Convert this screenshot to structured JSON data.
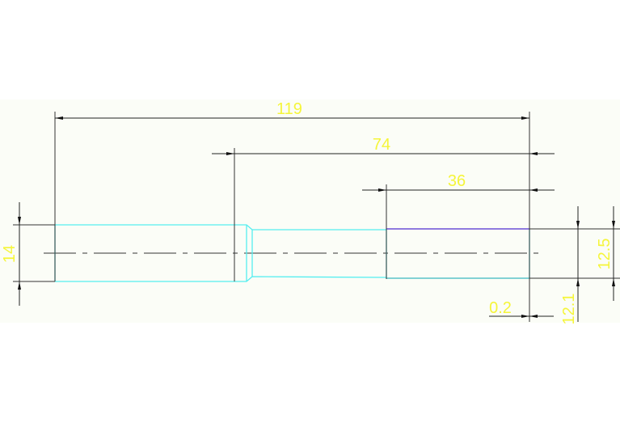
{
  "drawing": {
    "dimensions": {
      "overall_length": "119",
      "length_74": "74",
      "length_36": "36",
      "diameter_left": "14",
      "diameter_12_5": "12.5",
      "diameter_12_1": "12.1",
      "offset": "0.2"
    },
    "colors": {
      "background_band": "#fbfdf7",
      "part_outline": "#55eef0",
      "highlight_edge": "#6a4fd6",
      "dimension_line": "#202020",
      "dimension_text": "#f5f53a"
    }
  }
}
